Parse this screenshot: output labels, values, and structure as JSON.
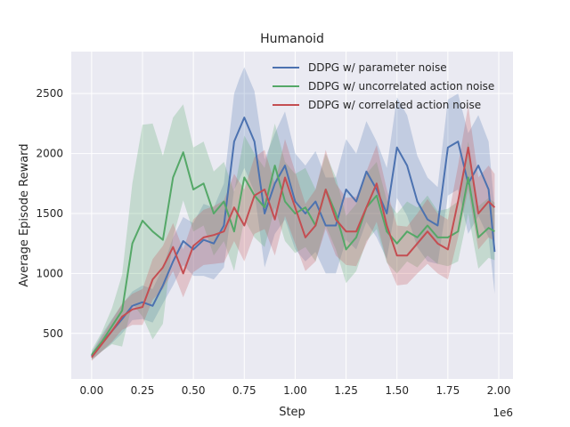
{
  "chart_data": {
    "type": "line",
    "title": "Humanoid",
    "xlabel": "Step",
    "ylabel": "Average Episode Reward",
    "x_offset_label": "1e6",
    "xlim": [
      -0.1,
      2.07
    ],
    "ylim": [
      120,
      2850
    ],
    "x_ticks": [
      0.0,
      0.25,
      0.5,
      0.75,
      1.0,
      1.25,
      1.5,
      1.75,
      2.0
    ],
    "x_tick_labels": [
      "0.00",
      "0.25",
      "0.50",
      "0.75",
      "1.00",
      "1.25",
      "1.50",
      "1.75",
      "2.00"
    ],
    "y_ticks": [
      500,
      1000,
      1500,
      2000,
      2500
    ],
    "y_tick_labels": [
      "500",
      "1000",
      "1500",
      "2000",
      "2500"
    ],
    "grid": true,
    "legend_position": "top-right",
    "background": "#eaeaf2",
    "series": [
      {
        "name": "DDPG w/ parameter noise",
        "color": "#4c72b0",
        "x": [
          0.0,
          0.05,
          0.1,
          0.15,
          0.2,
          0.25,
          0.3,
          0.35,
          0.4,
          0.45,
          0.5,
          0.55,
          0.6,
          0.65,
          0.7,
          0.725,
          0.75,
          0.8,
          0.85,
          0.9,
          0.95,
          1.0,
          1.05,
          1.1,
          1.15,
          1.2,
          1.25,
          1.3,
          1.35,
          1.4,
          1.45,
          1.5,
          1.55,
          1.6,
          1.65,
          1.7,
          1.75,
          1.8,
          1.85,
          1.9,
          1.95,
          1.98
        ],
        "y": [
          310,
          420,
          520,
          620,
          730,
          760,
          730,
          900,
          1100,
          1270,
          1200,
          1280,
          1250,
          1400,
          2100,
          2200,
          2300,
          2100,
          1500,
          1750,
          1900,
          1600,
          1500,
          1600,
          1400,
          1400,
          1700,
          1600,
          1850,
          1700,
          1500,
          2050,
          1900,
          1600,
          1450,
          1400,
          2050,
          2100,
          1750,
          1900,
          1700,
          1180
        ],
        "band_width": [
          30,
          70,
          100,
          120,
          120,
          140,
          140,
          150,
          200,
          200,
          220,
          300,
          300,
          350,
          400,
          420,
          420,
          420,
          450,
          420,
          450,
          400,
          400,
          420,
          400,
          400,
          420,
          400,
          420,
          400,
          380,
          420,
          420,
          380,
          350,
          320,
          400,
          400,
          420,
          420,
          400,
          350
        ]
      },
      {
        "name": "DDPG w/ uncorrelated action noise",
        "color": "#55a868",
        "x": [
          0.0,
          0.05,
          0.1,
          0.15,
          0.2,
          0.25,
          0.3,
          0.35,
          0.4,
          0.45,
          0.5,
          0.55,
          0.6,
          0.65,
          0.7,
          0.75,
          0.8,
          0.85,
          0.9,
          0.95,
          1.0,
          1.05,
          1.1,
          1.15,
          1.2,
          1.25,
          1.3,
          1.35,
          1.4,
          1.45,
          1.5,
          1.55,
          1.6,
          1.65,
          1.7,
          1.75,
          1.8,
          1.85,
          1.9,
          1.95,
          1.98
        ],
        "y": [
          320,
          430,
          560,
          690,
          1250,
          1440,
          1350,
          1280,
          1800,
          2010,
          1700,
          1750,
          1500,
          1600,
          1350,
          1800,
          1650,
          1550,
          1900,
          1600,
          1500,
          1550,
          1400,
          1700,
          1500,
          1200,
          1300,
          1550,
          1650,
          1350,
          1250,
          1350,
          1300,
          1400,
          1300,
          1300,
          1350,
          1800,
          1300,
          1380,
          1350
        ],
        "band_width": [
          40,
          80,
          150,
          300,
          500,
          800,
          900,
          700,
          500,
          400,
          350,
          350,
          350,
          330,
          330,
          350,
          350,
          330,
          350,
          330,
          330,
          330,
          300,
          300,
          300,
          280,
          280,
          280,
          280,
          260,
          250,
          250,
          250,
          250,
          220,
          240,
          250,
          300,
          260,
          250,
          240
        ]
      },
      {
        "name": "DDPG w/ correlated action noise",
        "color": "#c44e52",
        "x": [
          0.0,
          0.05,
          0.1,
          0.15,
          0.2,
          0.25,
          0.3,
          0.35,
          0.4,
          0.45,
          0.5,
          0.55,
          0.6,
          0.65,
          0.7,
          0.75,
          0.8,
          0.85,
          0.9,
          0.95,
          1.0,
          1.05,
          1.1,
          1.15,
          1.2,
          1.25,
          1.3,
          1.35,
          1.4,
          1.45,
          1.5,
          1.55,
          1.6,
          1.65,
          1.7,
          1.75,
          1.8,
          1.85,
          1.9,
          1.95,
          1.98
        ],
        "y": [
          300,
          410,
          520,
          640,
          700,
          720,
          950,
          1050,
          1220,
          1000,
          1230,
          1300,
          1320,
          1350,
          1550,
          1400,
          1650,
          1700,
          1450,
          1800,
          1550,
          1300,
          1400,
          1700,
          1450,
          1350,
          1350,
          1550,
          1750,
          1400,
          1150,
          1150,
          1250,
          1350,
          1250,
          1200,
          1600,
          2050,
          1500,
          1600,
          1550
        ],
        "band_width": [
          30,
          60,
          90,
          110,
          130,
          150,
          170,
          180,
          200,
          200,
          220,
          230,
          240,
          260,
          280,
          300,
          320,
          330,
          300,
          320,
          300,
          280,
          300,
          330,
          300,
          280,
          290,
          300,
          320,
          300,
          250,
          240,
          250,
          270,
          250,
          250,
          300,
          350,
          300,
          300,
          280
        ]
      }
    ]
  }
}
